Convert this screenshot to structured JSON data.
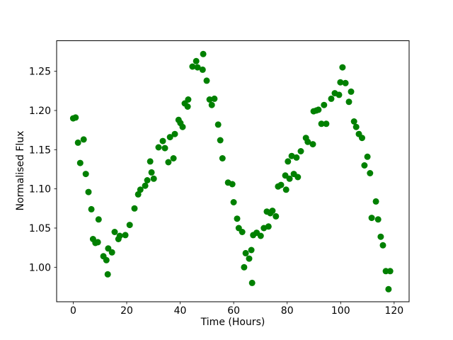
{
  "figure": {
    "background": "#ffffff",
    "frame_color": "#000000"
  },
  "chart_data": {
    "type": "scatter",
    "xlabel": "Time (Hours)",
    "ylabel": "Normalised Flux",
    "marker_color": "#008000",
    "marker_diameter_px": 9,
    "grid": false,
    "xlim": [
      -6.2,
      125.6
    ],
    "ylim": [
      0.956,
      1.289
    ],
    "xticks": [
      0,
      20,
      40,
      60,
      80,
      100,
      120
    ],
    "xtick_labels": [
      "0",
      "20",
      "40",
      "60",
      "80",
      "100",
      "120"
    ],
    "yticks": [
      1.0,
      1.05,
      1.1,
      1.15,
      1.2,
      1.25
    ],
    "ytick_labels": [
      "1.00",
      "1.05",
      "1.10",
      "1.15",
      "1.20",
      "1.25"
    ],
    "points": [
      [
        0.0,
        1.19
      ],
      [
        0.9,
        1.191
      ],
      [
        1.8,
        1.159
      ],
      [
        2.6,
        1.133
      ],
      [
        3.9,
        1.163
      ],
      [
        4.7,
        1.119
      ],
      [
        5.7,
        1.096
      ],
      [
        6.8,
        1.074
      ],
      [
        7.4,
        1.036
      ],
      [
        8.3,
        1.031
      ],
      [
        9.2,
        1.032
      ],
      [
        9.5,
        1.061
      ],
      [
        11.3,
        1.014
      ],
      [
        12.4,
        1.009
      ],
      [
        12.9,
        0.991
      ],
      [
        13.1,
        1.024
      ],
      [
        14.5,
        1.019
      ],
      [
        15.5,
        1.045
      ],
      [
        16.9,
        1.036
      ],
      [
        17.4,
        1.04
      ],
      [
        19.5,
        1.041
      ],
      [
        21.1,
        1.054
      ],
      [
        22.9,
        1.075
      ],
      [
        24.3,
        1.093
      ],
      [
        25.1,
        1.099
      ],
      [
        26.9,
        1.104
      ],
      [
        27.7,
        1.111
      ],
      [
        28.8,
        1.135
      ],
      [
        29.3,
        1.121
      ],
      [
        30.1,
        1.113
      ],
      [
        31.9,
        1.153
      ],
      [
        33.5,
        1.161
      ],
      [
        34.3,
        1.152
      ],
      [
        35.6,
        1.134
      ],
      [
        36.2,
        1.166
      ],
      [
        37.5,
        1.139
      ],
      [
        38.0,
        1.17
      ],
      [
        39.4,
        1.188
      ],
      [
        40.1,
        1.184
      ],
      [
        40.9,
        1.179
      ],
      [
        41.7,
        1.209
      ],
      [
        42.8,
        1.205
      ],
      [
        43.0,
        1.214
      ],
      [
        44.6,
        1.256
      ],
      [
        46.0,
        1.263
      ],
      [
        46.5,
        1.255
      ],
      [
        48.4,
        1.252
      ],
      [
        48.6,
        1.272
      ],
      [
        49.9,
        1.238
      ],
      [
        51.0,
        1.214
      ],
      [
        51.8,
        1.207
      ],
      [
        52.8,
        1.215
      ],
      [
        54.2,
        1.182
      ],
      [
        55.0,
        1.162
      ],
      [
        55.8,
        1.139
      ],
      [
        57.9,
        1.108
      ],
      [
        59.5,
        1.106
      ],
      [
        60.0,
        1.083
      ],
      [
        61.3,
        1.062
      ],
      [
        61.9,
        1.05
      ],
      [
        63.2,
        1.045
      ],
      [
        63.9,
        1.0
      ],
      [
        64.5,
        1.018
      ],
      [
        65.8,
        1.011
      ],
      [
        66.6,
        1.022
      ],
      [
        66.9,
        0.98
      ],
      [
        67.3,
        1.041
      ],
      [
        68.6,
        1.044
      ],
      [
        70.1,
        1.04
      ],
      [
        71.3,
        1.05
      ],
      [
        72.4,
        1.071
      ],
      [
        73.0,
        1.052
      ],
      [
        73.7,
        1.069
      ],
      [
        74.5,
        1.072
      ],
      [
        75.8,
        1.065
      ],
      [
        76.6,
        1.103
      ],
      [
        77.7,
        1.105
      ],
      [
        79.3,
        1.117
      ],
      [
        79.6,
        1.099
      ],
      [
        80.3,
        1.135
      ],
      [
        80.9,
        1.113
      ],
      [
        81.7,
        1.142
      ],
      [
        82.5,
        1.119
      ],
      [
        83.5,
        1.14
      ],
      [
        84.0,
        1.115
      ],
      [
        85.1,
        1.148
      ],
      [
        87.0,
        1.165
      ],
      [
        87.7,
        1.16
      ],
      [
        89.6,
        1.157
      ],
      [
        89.9,
        1.199
      ],
      [
        90.9,
        1.2
      ],
      [
        91.7,
        1.201
      ],
      [
        92.8,
        1.183
      ],
      [
        93.8,
        1.207
      ],
      [
        94.6,
        1.183
      ],
      [
        96.5,
        1.215
      ],
      [
        97.8,
        1.222
      ],
      [
        99.4,
        1.22
      ],
      [
        99.9,
        1.236
      ],
      [
        100.7,
        1.255
      ],
      [
        101.8,
        1.235
      ],
      [
        103.1,
        1.211
      ],
      [
        103.9,
        1.224
      ],
      [
        105.0,
        1.186
      ],
      [
        105.8,
        1.179
      ],
      [
        106.8,
        1.17
      ],
      [
        108.0,
        1.165
      ],
      [
        108.9,
        1.13
      ],
      [
        110.0,
        1.141
      ],
      [
        111.0,
        1.12
      ],
      [
        111.6,
        1.063
      ],
      [
        113.2,
        1.084
      ],
      [
        114.0,
        1.061
      ],
      [
        115.0,
        1.039
      ],
      [
        115.8,
        1.028
      ],
      [
        116.9,
        0.995
      ],
      [
        117.9,
        0.972
      ],
      [
        118.5,
        0.995
      ]
    ]
  }
}
